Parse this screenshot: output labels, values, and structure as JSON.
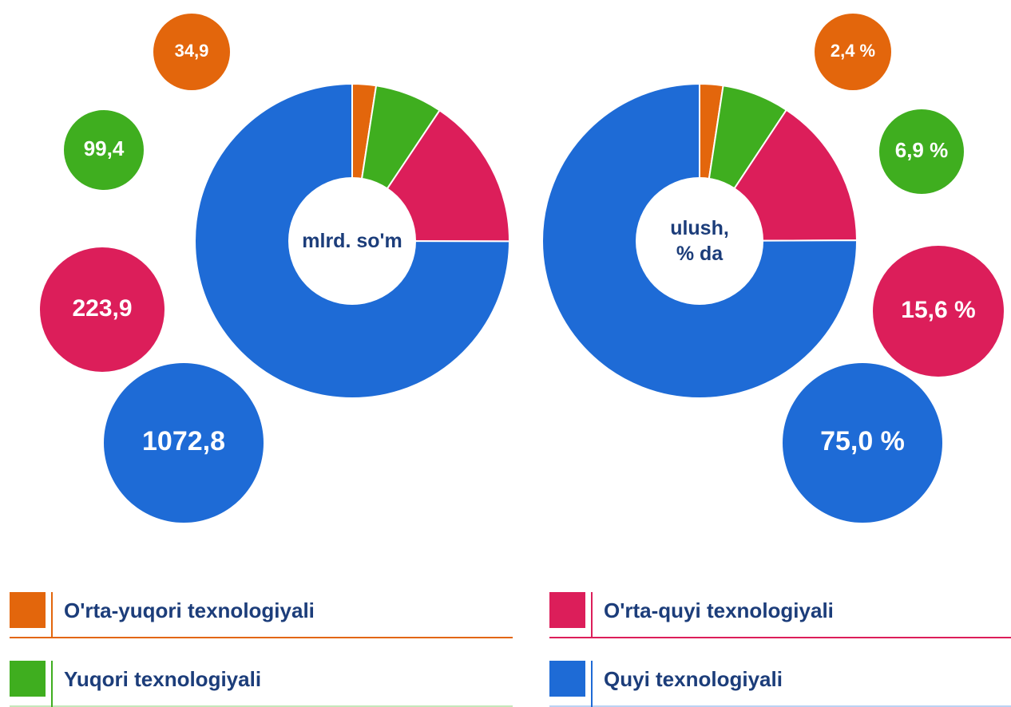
{
  "chart_data": [
    {
      "type": "pie",
      "center_label": "mlrd. so'm",
      "categories": [
        "O'rta-yuqori texnologiyali",
        "Yuqori texnologiyali",
        "O'rta-quyi texnologiyali",
        "Quyi texnologiyali"
      ],
      "colors": [
        "#e3660c",
        "#3fae1f",
        "#dc1e5a",
        "#1e6bd6"
      ],
      "values": [
        34.9,
        99.4,
        223.9,
        1072.8
      ],
      "value_labels": [
        "34,9",
        "99,4",
        "223,9",
        "1072,8"
      ]
    },
    {
      "type": "pie",
      "center_label": "ulush,\n% da",
      "values": [
        2.4,
        6.9,
        15.6,
        75.0
      ],
      "value_labels": [
        "2,4 %",
        "6,9 %",
        "15,6 %",
        "75,0 %"
      ]
    }
  ]
}
